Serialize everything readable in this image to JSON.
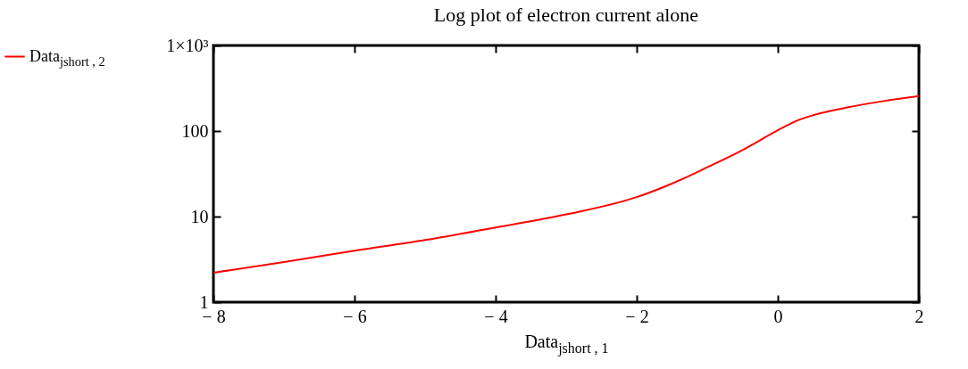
{
  "chart_data": {
    "type": "line",
    "title": "Log plot of electron current alone",
    "xlabel": "Data$_{jshort , 1}$",
    "x": [
      -8,
      -7,
      -6,
      -5,
      -4,
      -3,
      -2,
      -1.5,
      -1,
      -0.5,
      0,
      0.25,
      0.5,
      1,
      1.5,
      2
    ],
    "series": [
      {
        "name": "Data$_{jshort , 2}$",
        "color": "#ff0000",
        "values": [
          2.21,
          2.94,
          3.99,
          5.32,
          7.44,
          10.6,
          16.9,
          24.3,
          37.7,
          60,
          102,
          130,
          153,
          190,
          224,
          257
        ]
      }
    ],
    "xlim": [
      -8,
      2
    ],
    "xticks": [
      {
        "value": -8,
        "label": "− 8"
      },
      {
        "value": -6,
        "label": "− 6"
      },
      {
        "value": -4,
        "label": "− 4"
      },
      {
        "value": -2,
        "label": "− 2"
      },
      0,
      2
    ],
    "ylim": [
      1,
      1000
    ],
    "yticks": [
      1,
      10,
      100,
      {
        "value": 1000,
        "label": "1×10³"
      }
    ],
    "log": "y",
    "grid": false,
    "legend": "left",
    "marker": "none",
    "line_style": "solid"
  }
}
